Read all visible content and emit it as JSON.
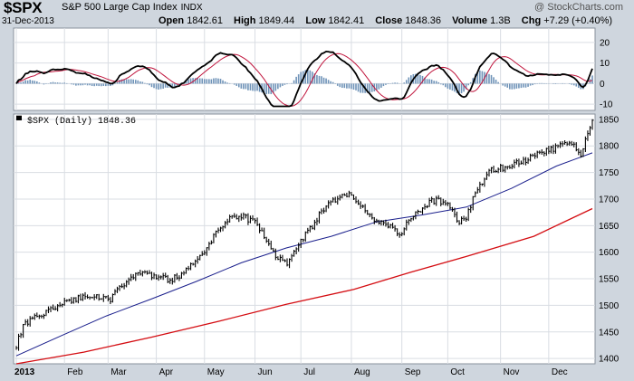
{
  "header": {
    "symbol": "$SPX",
    "name": "S&P 500 Large Cap Index",
    "exchange": "INDX",
    "date": "31-Dec-2013",
    "watermark": "@ StockCharts.com",
    "open_label": "Open",
    "open": "1842.61",
    "high_label": "High",
    "high": "1849.44",
    "low_label": "Low",
    "low": "1842.41",
    "close_label": "Close",
    "close": "1848.36",
    "volume_label": "Volume",
    "volume": "1.3B",
    "chg_label": "Chg",
    "chg": "+7.29 (+0.40%)"
  },
  "colors": {
    "background": "#cfd6de",
    "plot_bg": "#ffffff",
    "price": "#000000",
    "sma50": "#1a1f8c",
    "sma200": "#d40d12",
    "macd_line": "#000000",
    "signal_line": "#c0143c",
    "histogram": "#6f93b8",
    "grid": "#d9dde3"
  },
  "chart_data": [
    {
      "type": "line",
      "panel": "indicator",
      "yticks": [
        20,
        10,
        0,
        -10
      ],
      "ylim": [
        -13,
        27
      ],
      "series": []
    },
    {
      "type": "line",
      "panel": "price",
      "legend": "$SPX (Daily) 1848.36",
      "yticks": [
        1850,
        1800,
        1750,
        1700,
        1650,
        1600,
        1550,
        1500,
        1450,
        1400
      ],
      "ylim": [
        1390,
        1860
      ],
      "xticks": [
        "2013",
        "Feb",
        "Mar",
        "Apr",
        "May",
        "Jun",
        "Jul",
        "Aug",
        "Sep",
        "Oct",
        "Nov",
        "Dec"
      ],
      "x_anchor": [
        [
          0,
          1426
        ],
        [
          3,
          1460
        ],
        [
          8,
          1475
        ],
        [
          15,
          1490
        ],
        [
          19,
          1500
        ],
        [
          28,
          1515
        ],
        [
          35,
          1520
        ],
        [
          42,
          1512
        ],
        [
          49,
          1545
        ],
        [
          55,
          1560
        ],
        [
          62,
          1556
        ],
        [
          68,
          1548
        ],
        [
          73,
          1555
        ],
        [
          82,
          1590
        ],
        [
          88,
          1630
        ],
        [
          95,
          1665
        ],
        [
          100,
          1670
        ],
        [
          106,
          1655
        ],
        [
          111,
          1628
        ],
        [
          116,
          1590
        ],
        [
          120,
          1576
        ],
        [
          124,
          1610
        ],
        [
          130,
          1640
        ],
        [
          137,
          1685
        ],
        [
          143,
          1700
        ],
        [
          148,
          1708
        ],
        [
          153,
          1692
        ],
        [
          159,
          1662
        ],
        [
          164,
          1653
        ],
        [
          170,
          1633
        ],
        [
          175,
          1660
        ],
        [
          182,
          1690
        ],
        [
          187,
          1700
        ],
        [
          192,
          1686
        ],
        [
          197,
          1655
        ],
        [
          200,
          1668
        ],
        [
          205,
          1720
        ],
        [
          211,
          1755
        ],
        [
          218,
          1760
        ],
        [
          225,
          1770
        ],
        [
          231,
          1782
        ],
        [
          237,
          1792
        ],
        [
          243,
          1805
        ],
        [
          248,
          1800
        ],
        [
          251,
          1776
        ],
        [
          253,
          1812
        ],
        [
          256,
          1848
        ]
      ],
      "sma50": [
        [
          0,
          1405
        ],
        [
          20,
          1443
        ],
        [
          40,
          1480
        ],
        [
          60,
          1512
        ],
        [
          80,
          1545
        ],
        [
          100,
          1580
        ],
        [
          120,
          1608
        ],
        [
          140,
          1630
        ],
        [
          160,
          1657
        ],
        [
          180,
          1670
        ],
        [
          200,
          1685
        ],
        [
          220,
          1720
        ],
        [
          240,
          1762
        ],
        [
          256,
          1787
        ]
      ],
      "sma200": [
        [
          0,
          1390
        ],
        [
          30,
          1412
        ],
        [
          60,
          1440
        ],
        [
          90,
          1470
        ],
        [
          120,
          1502
        ],
        [
          150,
          1530
        ],
        [
          175,
          1562
        ],
        [
          200,
          1592
        ],
        [
          230,
          1630
        ],
        [
          256,
          1682
        ]
      ]
    }
  ]
}
